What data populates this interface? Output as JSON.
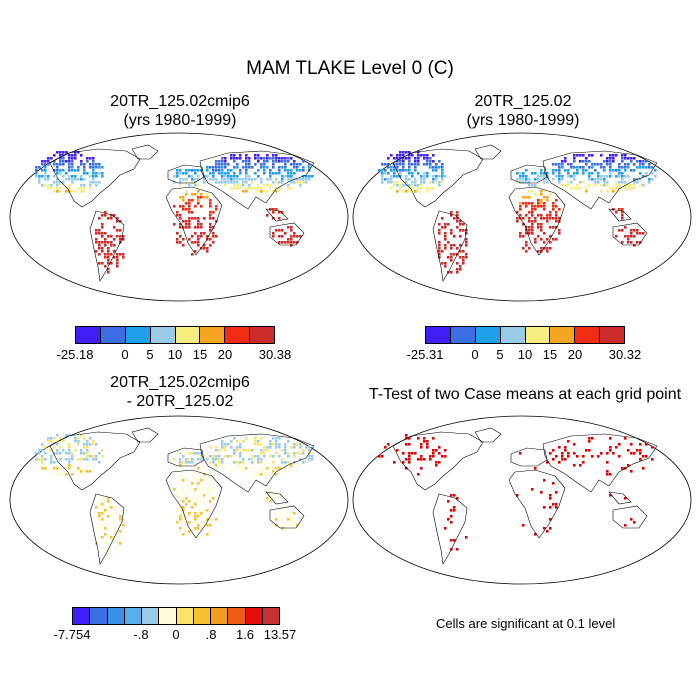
{
  "title": "MAM TLAKE Level 0 (C)",
  "panels": {
    "top_left": {
      "line1": "20TR_125.02cmip6",
      "line2": "(yrs 1980-1999)"
    },
    "top_right": {
      "line1": "20TR_125.02",
      "line2": "(yrs 1980-1999)"
    },
    "bottom_left": {
      "line1": "20TR_125.02cmip6",
      "line2": "- 20TR_125.02"
    },
    "bottom_right": {
      "line1": "T-Test of two Case means at each grid point"
    }
  },
  "colorbars": {
    "abs_colors": [
      "#3f1ff5",
      "#3a6ee2",
      "#1ea0ec",
      "#98cbe8",
      "#f8ee80",
      "#f5a51f",
      "#f22b13",
      "#ce2b2b"
    ],
    "diff_colors": [
      "#3f1ff5",
      "#3a6ee2",
      "#3a90e4",
      "#56aeec",
      "#98cbe8",
      "#fffbd8",
      "#fbe36b",
      "#f7c232",
      "#f39c1d",
      "#ef5d16",
      "#e70d0d",
      "#c83232"
    ],
    "top_left": {
      "min": "-25.18",
      "l0": "0",
      "l5": "5",
      "l10": "10",
      "l15": "15",
      "l20": "20",
      "max": "30.38"
    },
    "top_right": {
      "min": "-25.31",
      "l0": "0",
      "l5": "5",
      "l10": "10",
      "l15": "15",
      "l20": "20",
      "max": "30.32"
    },
    "bottom_left": {
      "min": "-7.754",
      "lneg8": "-.8",
      "l0": "0",
      "lpos8": ".8",
      "l16": "1.6",
      "max": "13.57"
    }
  },
  "significance_note": "Cells are significant at 0.1 level",
  "significance_color": "#e00000"
}
